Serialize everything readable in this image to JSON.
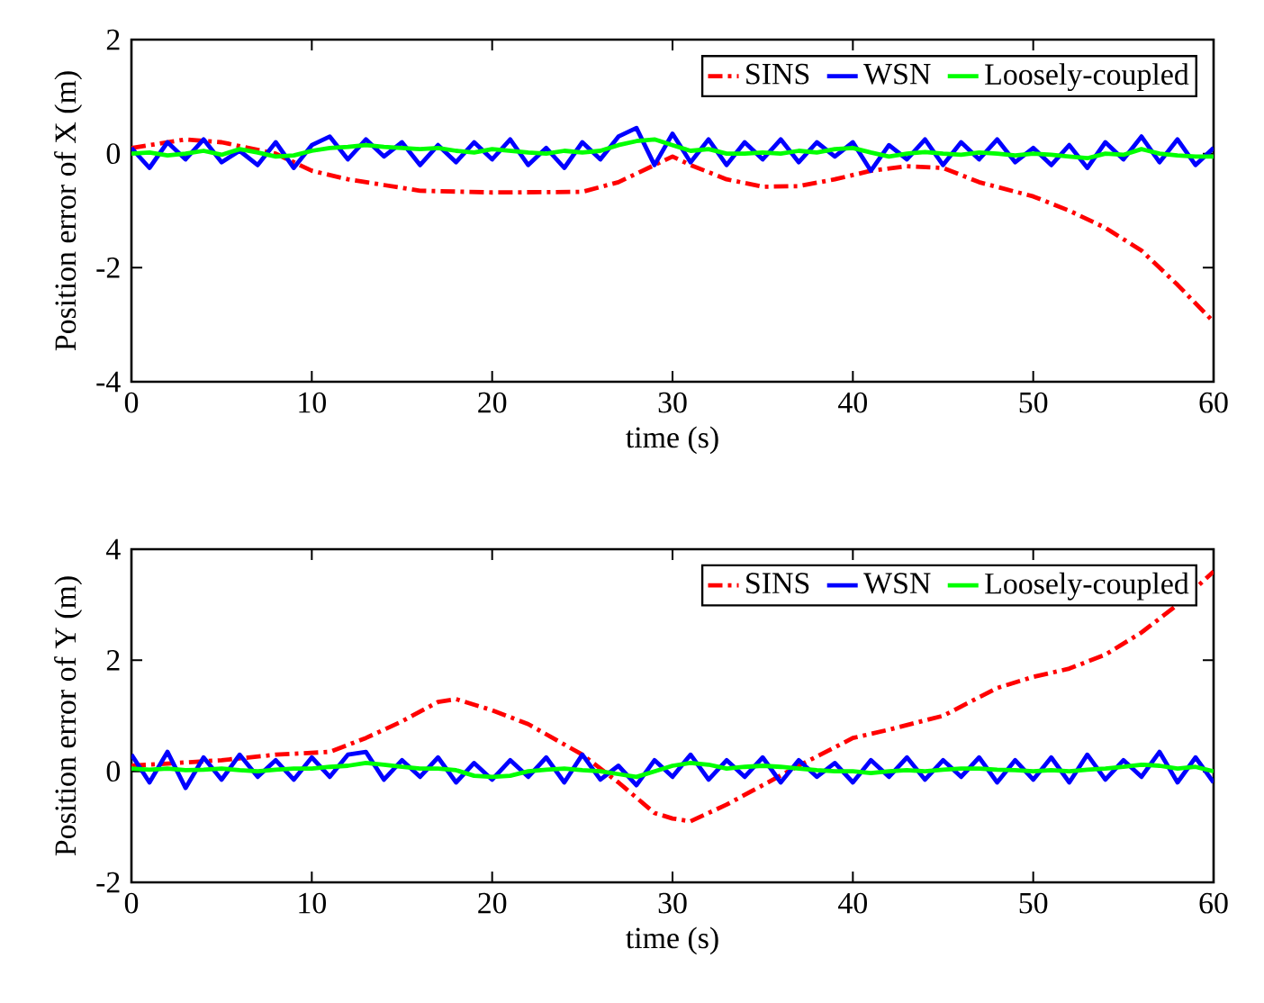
{
  "chart_data": [
    {
      "type": "line",
      "xlabel": "time (s)",
      "ylabel": "Position error of X (m)",
      "xlim": [
        0,
        60
      ],
      "ylim": [
        -4,
        2
      ],
      "xticks": [
        0,
        10,
        20,
        30,
        40,
        50,
        60
      ],
      "yticks": [
        -4,
        -2,
        0,
        2
      ],
      "grid": false,
      "legend": "top right",
      "marker": "none",
      "series": [
        {
          "name": "SINS",
          "color": "#ff0000",
          "line_style": "dashdot",
          "x": [
            0,
            3,
            5,
            8,
            10,
            12,
            14,
            16,
            20,
            25,
            27,
            29,
            30,
            31,
            33,
            35,
            37,
            39,
            41,
            43,
            45,
            47,
            50,
            52,
            54,
            56,
            58,
            60
          ],
          "values": [
            0.1,
            0.25,
            0.2,
            0,
            -0.3,
            -0.45,
            -0.55,
            -0.65,
            -0.68,
            -0.67,
            -0.5,
            -0.2,
            -0.05,
            -0.2,
            -0.45,
            -0.58,
            -0.57,
            -0.45,
            -0.3,
            -0.22,
            -0.25,
            -0.5,
            -0.75,
            -1.0,
            -1.3,
            -1.7,
            -2.3,
            -2.95
          ]
        },
        {
          "name": "WSN",
          "color": "#0000ff",
          "line_style": "solid",
          "x": [
            0,
            1,
            2,
            3,
            4,
            5,
            6,
            7,
            8,
            9,
            10,
            11,
            12,
            13,
            14,
            15,
            16,
            17,
            18,
            19,
            20,
            21,
            22,
            23,
            24,
            25,
            26,
            27,
            28,
            29,
            30,
            31,
            32,
            33,
            34,
            35,
            36,
            37,
            38,
            39,
            40,
            41,
            42,
            43,
            44,
            45,
            46,
            47,
            48,
            49,
            50,
            51,
            52,
            53,
            54,
            55,
            56,
            57,
            58,
            59,
            60
          ],
          "values": [
            0.1,
            -0.25,
            0.2,
            -0.1,
            0.25,
            -0.15,
            0.05,
            -0.2,
            0.2,
            -0.25,
            0.15,
            0.3,
            -0.1,
            0.25,
            -0.05,
            0.2,
            -0.2,
            0.15,
            -0.15,
            0.2,
            -0.1,
            0.25,
            -0.2,
            0.1,
            -0.25,
            0.2,
            -0.1,
            0.3,
            0.45,
            -0.2,
            0.35,
            -0.15,
            0.25,
            -0.2,
            0.2,
            -0.1,
            0.25,
            -0.15,
            0.2,
            -0.05,
            0.2,
            -0.3,
            0.15,
            -0.1,
            0.25,
            -0.2,
            0.2,
            -0.1,
            0.25,
            -0.15,
            0.1,
            -0.2,
            0.15,
            -0.25,
            0.2,
            -0.1,
            0.3,
            -0.15,
            0.25,
            -0.2,
            0.1
          ]
        },
        {
          "name": "Loosely-coupled",
          "color": "#00ff00",
          "line_style": "solid",
          "x": [
            0,
            1,
            2,
            3,
            4,
            5,
            6,
            7,
            8,
            9,
            10,
            11,
            12,
            13,
            14,
            15,
            16,
            17,
            18,
            19,
            20,
            21,
            22,
            23,
            24,
            25,
            26,
            27,
            28,
            29,
            30,
            31,
            32,
            33,
            34,
            35,
            36,
            37,
            38,
            39,
            40,
            41,
            42,
            43,
            44,
            45,
            46,
            47,
            48,
            49,
            50,
            51,
            52,
            53,
            54,
            55,
            56,
            57,
            58,
            59,
            60
          ],
          "values": [
            0,
            0.02,
            -0.03,
            0,
            0.05,
            -0.02,
            0.08,
            0.02,
            -0.05,
            -0.03,
            0.05,
            0.1,
            0.12,
            0.15,
            0.12,
            0.1,
            0.08,
            0.1,
            0.05,
            0.02,
            0.08,
            0.05,
            0.02,
            0,
            0.05,
            0.02,
            0.05,
            0.15,
            0.22,
            0.25,
            0.15,
            0.05,
            0.08,
            0,
            0,
            0.02,
            0,
            0.05,
            0.02,
            0.08,
            0.1,
            0.02,
            -0.05,
            0,
            0.03,
            0,
            -0.02,
            0.02,
            0,
            -0.03,
            0,
            -0.02,
            -0.05,
            -0.08,
            0,
            -0.02,
            0.08,
            0,
            -0.03,
            -0.05,
            -0.05
          ]
        }
      ]
    },
    {
      "type": "line",
      "xlabel": "time (s)",
      "ylabel": "Position error of Y (m)",
      "xlim": [
        0,
        60
      ],
      "ylim": [
        -2,
        4
      ],
      "xticks": [
        0,
        10,
        20,
        30,
        40,
        50,
        60
      ],
      "yticks": [
        -2,
        0,
        2,
        4
      ],
      "grid": false,
      "legend": "top right",
      "marker": "none",
      "series": [
        {
          "name": "SINS",
          "color": "#ff0000",
          "line_style": "dashdot",
          "x": [
            0,
            5,
            8,
            11,
            13,
            15,
            17,
            18,
            20,
            22,
            25,
            27,
            29,
            30,
            31,
            33,
            35,
            37,
            40,
            42,
            45,
            48,
            50,
            52,
            54,
            56,
            58,
            60
          ],
          "values": [
            0.1,
            0.2,
            0.3,
            0.35,
            0.6,
            0.9,
            1.25,
            1.3,
            1.1,
            0.85,
            0.3,
            -0.2,
            -0.75,
            -0.85,
            -0.9,
            -0.6,
            -0.25,
            0.1,
            0.6,
            0.75,
            1.0,
            1.5,
            1.7,
            1.85,
            2.1,
            2.5,
            3.0,
            3.6
          ]
        },
        {
          "name": "WSN",
          "color": "#0000ff",
          "line_style": "solid",
          "x": [
            0,
            1,
            2,
            3,
            4,
            5,
            6,
            7,
            8,
            9,
            10,
            11,
            12,
            13,
            14,
            15,
            16,
            17,
            18,
            19,
            20,
            21,
            22,
            23,
            24,
            25,
            26,
            27,
            28,
            29,
            30,
            31,
            32,
            33,
            34,
            35,
            36,
            37,
            38,
            39,
            40,
            41,
            42,
            43,
            44,
            45,
            46,
            47,
            48,
            49,
            50,
            51,
            52,
            53,
            54,
            55,
            56,
            57,
            58,
            59,
            60
          ],
          "values": [
            0.3,
            -0.2,
            0.35,
            -0.3,
            0.25,
            -0.15,
            0.3,
            -0.1,
            0.2,
            -0.15,
            0.25,
            -0.1,
            0.3,
            0.35,
            -0.15,
            0.2,
            -0.1,
            0.25,
            -0.2,
            0.15,
            -0.15,
            0.2,
            -0.1,
            0.25,
            -0.2,
            0.3,
            -0.15,
            0.1,
            -0.25,
            0.2,
            -0.1,
            0.3,
            -0.15,
            0.2,
            -0.1,
            0.25,
            -0.2,
            0.2,
            -0.1,
            0.15,
            -0.2,
            0.2,
            -0.1,
            0.25,
            -0.15,
            0.2,
            -0.1,
            0.25,
            -0.2,
            0.2,
            -0.15,
            0.25,
            -0.2,
            0.3,
            -0.15,
            0.2,
            -0.1,
            0.35,
            -0.2,
            0.25,
            -0.2
          ]
        },
        {
          "name": "Loosely-coupled",
          "color": "#00ff00",
          "line_style": "solid",
          "x": [
            0,
            1,
            2,
            3,
            4,
            5,
            6,
            7,
            8,
            9,
            10,
            11,
            12,
            13,
            14,
            15,
            16,
            17,
            18,
            19,
            20,
            21,
            22,
            23,
            24,
            25,
            26,
            27,
            28,
            29,
            30,
            31,
            32,
            33,
            34,
            35,
            36,
            37,
            38,
            39,
            40,
            41,
            42,
            43,
            44,
            45,
            46,
            47,
            48,
            49,
            50,
            51,
            52,
            53,
            54,
            55,
            56,
            57,
            58,
            59,
            60
          ],
          "values": [
            0.05,
            0.03,
            0.05,
            0.02,
            0.03,
            0.05,
            0.02,
            0,
            0.03,
            0.05,
            0.05,
            0.08,
            0.1,
            0.15,
            0.12,
            0.08,
            0.05,
            0.05,
            0.02,
            -0.08,
            -0.1,
            -0.08,
            0,
            0.03,
            0.05,
            0.02,
            0,
            -0.05,
            -0.1,
            0,
            0.1,
            0.15,
            0.12,
            0.05,
            0.08,
            0.1,
            0.08,
            0.05,
            0.02,
            0,
            0,
            -0.03,
            0,
            0.02,
            0,
            0.03,
            0.05,
            0.05,
            0.03,
            0.02,
            0,
            0.02,
            0,
            0.03,
            0.05,
            0.08,
            0.12,
            0.1,
            0.05,
            0.08,
            0
          ]
        }
      ]
    }
  ]
}
